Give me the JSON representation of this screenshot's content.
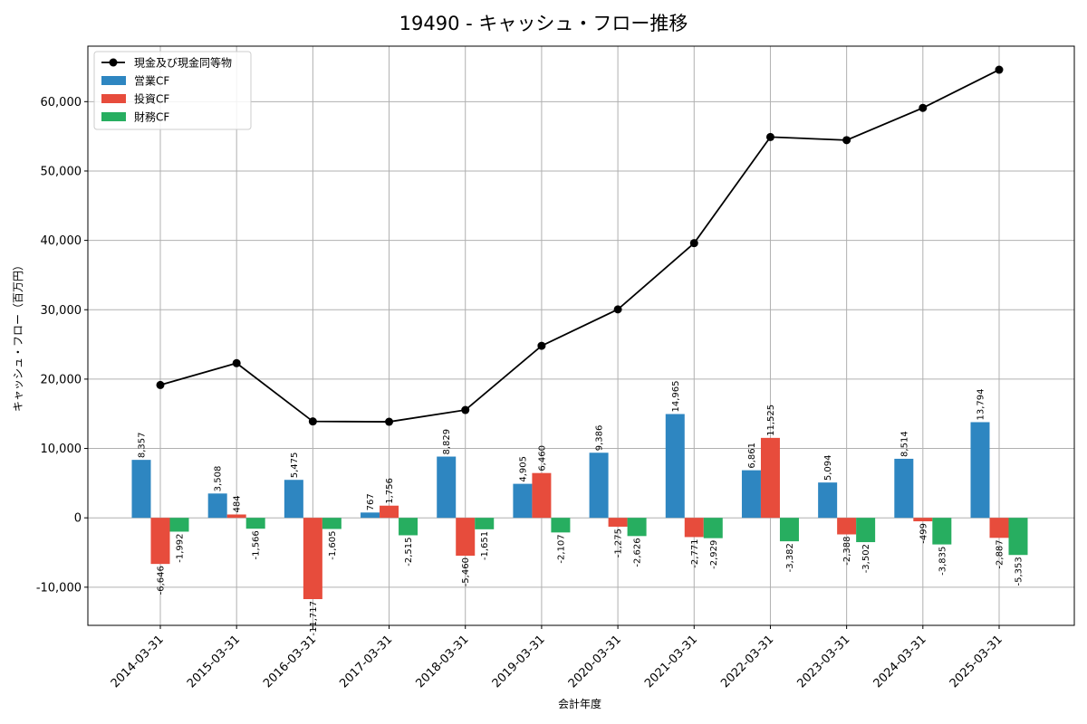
{
  "chart_data": {
    "type": "bar",
    "title": "19490 - キャッシュ・フロー推移",
    "xlabel": "会計年度",
    "ylabel": "キャッシュ・フロー（百万円）",
    "ylim": [
      -15500,
      68000
    ],
    "yticks": [
      -10000,
      0,
      10000,
      20000,
      30000,
      40000,
      50000,
      60000
    ],
    "ytick_labels": [
      "-10,000",
      "0",
      "10,000",
      "20,000",
      "30,000",
      "40,000",
      "50,000",
      "60,000"
    ],
    "grid": true,
    "legend_position": "top-left",
    "categories": [
      "2014-03-31",
      "2015-03-31",
      "2016-03-31",
      "2017-03-31",
      "2018-03-31",
      "2019-03-31",
      "2020-03-31",
      "2021-03-31",
      "2022-03-31",
      "2023-03-31",
      "2024-03-31",
      "2025-03-31"
    ],
    "series": [
      {
        "name": "営業CF",
        "kind": "bar",
        "color": "#2e86c1",
        "values": [
          8357,
          3508,
          5475,
          767,
          8829,
          4905,
          9386,
          14965,
          6861,
          5094,
          8514,
          13794
        ],
        "labels": [
          "8,357",
          "3,508",
          "5,475",
          "767",
          "8,829",
          "4,905",
          "9,386",
          "14,965",
          "6,861",
          "5,094",
          "8,514",
          "13,794"
        ]
      },
      {
        "name": "投資CF",
        "kind": "bar",
        "color": "#e74c3c",
        "values": [
          -6646,
          484,
          -11717,
          1756,
          -5460,
          6460,
          -1275,
          -2771,
          11525,
          -2388,
          -499,
          -2887
        ],
        "labels": [
          "-6,646",
          "484",
          "-11,717",
          "1,756",
          "-5,460",
          "6,460",
          "-1,275",
          "-2,771",
          "11,525",
          "-2,388",
          "-499",
          "-2,887"
        ]
      },
      {
        "name": "財務CF",
        "kind": "bar",
        "color": "#27ae60",
        "values": [
          -1992,
          -1566,
          -1605,
          -2515,
          -1651,
          -2107,
          -2626,
          -2929,
          -3382,
          -3502,
          -3835,
          -5353
        ],
        "labels": [
          "-1,992",
          "-1,566",
          "-1,605",
          "-2,515",
          "-1,651",
          "-2,107",
          "-2,626",
          "-2,929",
          "-3,382",
          "-3,502",
          "-3,835",
          "-5,353"
        ]
      },
      {
        "name": "現金及び現金同等物",
        "kind": "line",
        "color": "#000000",
        "values": [
          19150,
          22300,
          13900,
          13850,
          15550,
          24800,
          30050,
          39600,
          54900,
          54450,
          59100,
          64600
        ]
      }
    ]
  }
}
